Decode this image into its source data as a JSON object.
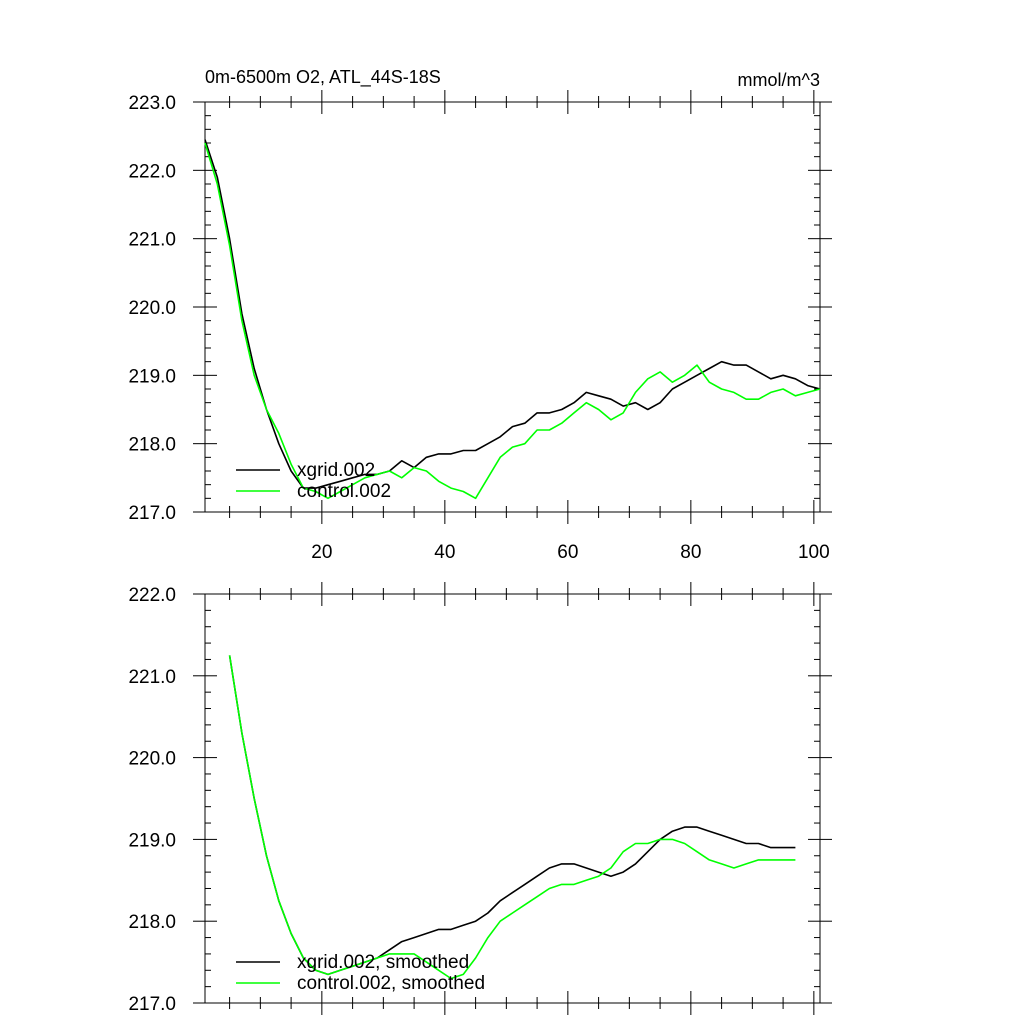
{
  "chart_data": [
    {
      "type": "line",
      "title": "0m-6500m O2, ATL_44S-18S",
      "units_label": "mmol/m^3",
      "xlabel": "",
      "ylabel": "",
      "xlim": [
        1,
        101
      ],
      "ylim": [
        217.0,
        223.0
      ],
      "x_ticks": [
        20,
        40,
        60,
        80,
        100
      ],
      "x_tick_labels": [
        "20",
        "40",
        "60",
        "80",
        "100"
      ],
      "y_ticks": [
        217,
        218,
        219,
        220,
        221,
        222,
        223
      ],
      "y_tick_labels": [
        "217.0",
        "218.0",
        "219.0",
        "220.0",
        "221.0",
        "222.0",
        "223.0"
      ],
      "grid": false,
      "legend_position": "bottom-left",
      "series": [
        {
          "name": "xgrid.002",
          "color": "#000000",
          "x": [
            1,
            3,
            5,
            7,
            9,
            11,
            13,
            15,
            17,
            19,
            21,
            23,
            25,
            27,
            29,
            31,
            33,
            35,
            37,
            39,
            41,
            43,
            45,
            47,
            49,
            51,
            53,
            55,
            57,
            59,
            61,
            63,
            65,
            67,
            69,
            71,
            73,
            75,
            77,
            79,
            81,
            83,
            85,
            87,
            89,
            91,
            93,
            95,
            97,
            99,
            101
          ],
          "y": [
            222.45,
            221.9,
            221.0,
            219.9,
            219.1,
            218.5,
            218.0,
            217.6,
            217.35,
            217.35,
            217.4,
            217.45,
            217.5,
            217.55,
            217.55,
            217.6,
            217.75,
            217.65,
            217.8,
            217.85,
            217.85,
            217.9,
            217.9,
            218.0,
            218.1,
            218.25,
            218.3,
            218.45,
            218.45,
            218.5,
            218.6,
            218.75,
            218.7,
            218.65,
            218.55,
            218.6,
            218.5,
            218.6,
            218.8,
            218.9,
            219.0,
            219.1,
            219.2,
            219.15,
            219.15,
            219.05,
            218.95,
            219.0,
            218.95,
            218.85,
            218.8
          ]
        },
        {
          "name": "control.002",
          "color": "#00ff00",
          "x": [
            1,
            3,
            5,
            7,
            9,
            11,
            13,
            15,
            17,
            19,
            21,
            23,
            25,
            27,
            29,
            31,
            33,
            35,
            37,
            39,
            41,
            43,
            45,
            47,
            49,
            51,
            53,
            55,
            57,
            59,
            61,
            63,
            65,
            67,
            69,
            71,
            73,
            75,
            77,
            79,
            81,
            83,
            85,
            87,
            89,
            91,
            93,
            95,
            97,
            99,
            101
          ],
          "y": [
            222.4,
            221.8,
            220.9,
            219.8,
            219.0,
            218.5,
            218.15,
            217.7,
            217.35,
            217.3,
            217.2,
            217.3,
            217.4,
            217.5,
            217.55,
            217.6,
            217.5,
            217.65,
            217.6,
            217.45,
            217.35,
            217.3,
            217.2,
            217.5,
            217.8,
            217.95,
            218.0,
            218.2,
            218.2,
            218.3,
            218.45,
            218.6,
            218.5,
            218.35,
            218.45,
            218.75,
            218.95,
            219.05,
            218.9,
            219.0,
            219.15,
            218.9,
            218.8,
            218.75,
            218.65,
            218.65,
            218.75,
            218.8,
            218.7,
            218.75,
            218.8
          ]
        }
      ]
    },
    {
      "type": "line",
      "title": "",
      "xlabel": "",
      "ylabel": "",
      "xlim": [
        1,
        101
      ],
      "ylim": [
        217.0,
        222.0
      ],
      "x_ticks": [
        20,
        40,
        60,
        80,
        100
      ],
      "y_ticks": [
        217,
        218,
        219,
        220,
        221,
        222
      ],
      "y_tick_labels": [
        "217.0",
        "218.0",
        "219.0",
        "220.0",
        "221.0",
        "222.0"
      ],
      "grid": false,
      "legend_position": "bottom-left",
      "series": [
        {
          "name": "xgrid.002, smoothed",
          "color": "#000000",
          "x": [
            5,
            7,
            9,
            11,
            13,
            15,
            17,
            19,
            21,
            23,
            25,
            27,
            29,
            31,
            33,
            35,
            37,
            39,
            41,
            43,
            45,
            47,
            49,
            51,
            53,
            55,
            57,
            59,
            61,
            63,
            65,
            67,
            69,
            71,
            73,
            75,
            77,
            79,
            81,
            83,
            85,
            87,
            89,
            91,
            93,
            95,
            97
          ],
          "y": [
            221.25,
            220.3,
            219.5,
            218.8,
            218.25,
            217.85,
            217.55,
            217.4,
            217.35,
            217.4,
            217.45,
            217.5,
            217.55,
            217.65,
            217.75,
            217.8,
            217.85,
            217.9,
            217.9,
            217.95,
            218.0,
            218.1,
            218.25,
            218.35,
            218.45,
            218.55,
            218.65,
            218.7,
            218.7,
            218.65,
            218.6,
            218.55,
            218.6,
            218.7,
            218.85,
            219.0,
            219.1,
            219.15,
            219.15,
            219.1,
            219.05,
            219.0,
            218.95,
            218.95,
            218.9,
            218.9,
            218.9
          ]
        },
        {
          "name": "control.002, smoothed",
          "color": "#00ff00",
          "x": [
            5,
            7,
            9,
            11,
            13,
            15,
            17,
            19,
            21,
            23,
            25,
            27,
            29,
            31,
            33,
            35,
            37,
            39,
            41,
            43,
            45,
            47,
            49,
            51,
            53,
            55,
            57,
            59,
            61,
            63,
            65,
            67,
            69,
            71,
            73,
            75,
            77,
            79,
            81,
            83,
            85,
            87,
            89,
            91,
            93,
            95,
            97
          ],
          "y": [
            221.25,
            220.3,
            219.5,
            218.8,
            218.25,
            217.85,
            217.55,
            217.4,
            217.35,
            217.4,
            217.45,
            217.5,
            217.55,
            217.6,
            217.6,
            217.6,
            217.5,
            217.4,
            217.3,
            217.35,
            217.55,
            217.8,
            218.0,
            218.1,
            218.2,
            218.3,
            218.4,
            218.45,
            218.45,
            218.5,
            218.55,
            218.65,
            218.85,
            218.95,
            218.95,
            219.0,
            219.0,
            218.95,
            218.85,
            218.75,
            218.7,
            218.65,
            218.7,
            218.75,
            218.75,
            218.75,
            218.75
          ]
        }
      ]
    }
  ]
}
